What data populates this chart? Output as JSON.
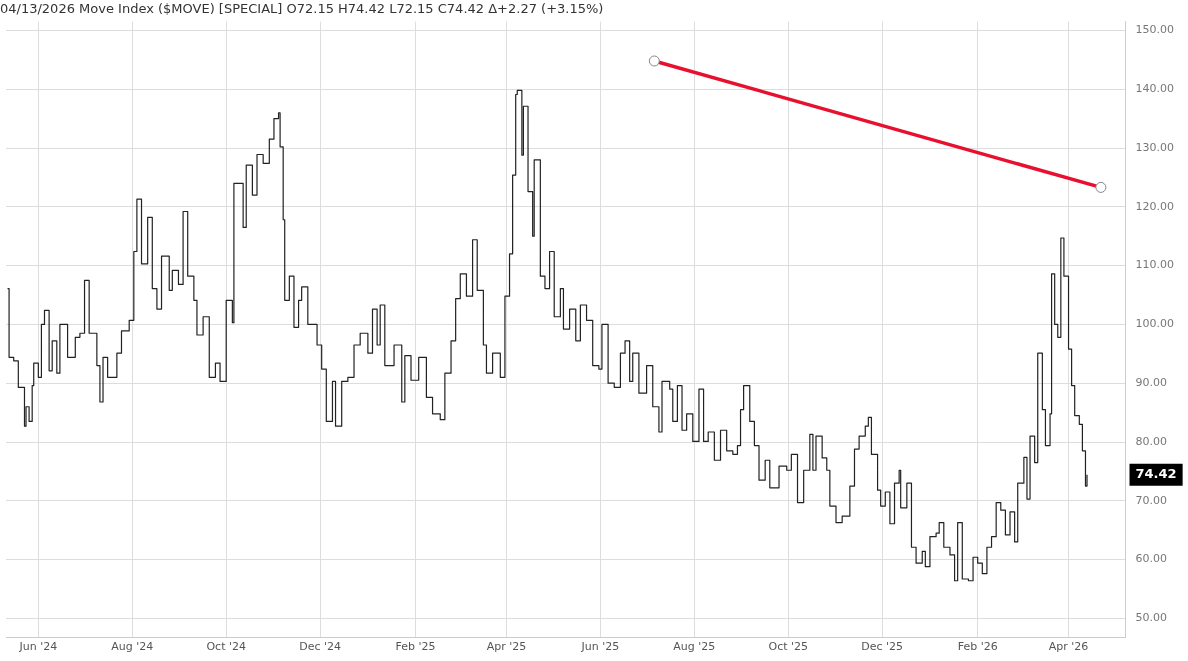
{
  "chart_data": {
    "type": "step",
    "title": "04/13/2026 Move Index ($MOVE) [SPECIAL] O72.15 H74.42 L72.15 C74.42 Δ+2.27 (+3.15%)",
    "xlim": [
      "2024-05-11",
      "2026-05-08"
    ],
    "xticks": [
      {
        "value": "2024-06-01",
        "label": "Jun '24"
      },
      {
        "value": "2024-08-01",
        "label": "Aug '24"
      },
      {
        "value": "2024-10-01",
        "label": "Oct '24"
      },
      {
        "value": "2024-12-01",
        "label": "Dec '24"
      },
      {
        "value": "2025-02-01",
        "label": "Feb '25"
      },
      {
        "value": "2025-04-01",
        "label": "Apr '25"
      },
      {
        "value": "2025-06-01",
        "label": "Jun '25"
      },
      {
        "value": "2025-08-01",
        "label": "Aug '25"
      },
      {
        "value": "2025-10-01",
        "label": "Oct '25"
      },
      {
        "value": "2025-12-01",
        "label": "Dec '25"
      },
      {
        "value": "2026-02-01",
        "label": "Feb '26"
      },
      {
        "value": "2026-04-01",
        "label": "Apr '26"
      }
    ],
    "ylim": [
      46.7,
      151.5
    ],
    "yticks": [
      {
        "value": 50,
        "label": "50.00"
      },
      {
        "value": 60,
        "label": "60.00"
      },
      {
        "value": 70,
        "label": "70.00"
      },
      {
        "value": 80,
        "label": "80.00"
      },
      {
        "value": 90,
        "label": "90.00"
      },
      {
        "value": 100,
        "label": "100.00"
      },
      {
        "value": 110,
        "label": "110.00"
      },
      {
        "value": 120,
        "label": "120.00"
      },
      {
        "value": 130,
        "label": "130.00"
      },
      {
        "value": 140,
        "label": "140.00"
      },
      {
        "value": 150,
        "label": "150.00"
      }
    ],
    "grid": true,
    "legend": false,
    "marker": "none",
    "series": [
      {
        "color": "#222222",
        "x": [
          "2024-05-12",
          "2024-05-13",
          "2024-05-16",
          "2024-05-19",
          "2024-05-23",
          "2024-05-24",
          "2024-05-26",
          "2024-05-28",
          "2024-05-29",
          "2024-06-01",
          "2024-06-03",
          "2024-06-05",
          "2024-06-08",
          "2024-06-10",
          "2024-06-13",
          "2024-06-15",
          "2024-06-20",
          "2024-06-25",
          "2024-06-28",
          "2024-07-01",
          "2024-07-04",
          "2024-07-09",
          "2024-07-11",
          "2024-07-13",
          "2024-07-16",
          "2024-07-22",
          "2024-07-25",
          "2024-07-30",
          "2024-08-02",
          "2024-08-04",
          "2024-08-07",
          "2024-08-11",
          "2024-08-14",
          "2024-08-17",
          "2024-08-20",
          "2024-08-25",
          "2024-08-27",
          "2024-08-31",
          "2024-09-03",
          "2024-09-06",
          "2024-09-10",
          "2024-09-12",
          "2024-09-16",
          "2024-09-20",
          "2024-09-24",
          "2024-09-27",
          "2024-10-01",
          "2024-10-05",
          "2024-10-06",
          "2024-10-12",
          "2024-10-14",
          "2024-10-18",
          "2024-10-21",
          "2024-10-25",
          "2024-10-29",
          "2024-11-01",
          "2024-11-04",
          "2024-11-05",
          "2024-11-07",
          "2024-11-08",
          "2024-11-11",
          "2024-11-14",
          "2024-11-17",
          "2024-11-19",
          "2024-11-23",
          "2024-11-29",
          "2024-12-02",
          "2024-12-05",
          "2024-12-09",
          "2024-12-11",
          "2024-12-15",
          "2024-12-19",
          "2024-12-23",
          "2024-12-27",
          "2025-01-01",
          "2025-01-04",
          "2025-01-07",
          "2025-01-09",
          "2025-01-12",
          "2025-01-18",
          "2025-01-23",
          "2025-01-25",
          "2025-01-29",
          "2025-02-03",
          "2025-02-08",
          "2025-02-12",
          "2025-02-17",
          "2025-02-20",
          "2025-02-24",
          "2025-02-27",
          "2025-03-02",
          "2025-03-06",
          "2025-03-10",
          "2025-03-13",
          "2025-03-17",
          "2025-03-19",
          "2025-03-23",
          "2025-03-28",
          "2025-03-31",
          "2025-04-03",
          "2025-04-05",
          "2025-04-07",
          "2025-04-08",
          "2025-04-11",
          "2025-04-12",
          "2025-04-15",
          "2025-04-18",
          "2025-04-19",
          "2025-04-23",
          "2025-04-26",
          "2025-04-29",
          "2025-05-02",
          "2025-05-06",
          "2025-05-08",
          "2025-05-12",
          "2025-05-16",
          "2025-05-19",
          "2025-05-23",
          "2025-05-27",
          "2025-05-31",
          "2025-06-02",
          "2025-06-06",
          "2025-06-10",
          "2025-06-14",
          "2025-06-17",
          "2025-06-20",
          "2025-06-22",
          "2025-06-26",
          "2025-07-01",
          "2025-07-05",
          "2025-07-09",
          "2025-07-11",
          "2025-07-16",
          "2025-07-18",
          "2025-07-21",
          "2025-07-24",
          "2025-07-27",
          "2025-07-31",
          "2025-08-04",
          "2025-08-07",
          "2025-08-10",
          "2025-08-14",
          "2025-08-18",
          "2025-08-22",
          "2025-08-26",
          "2025-08-29",
          "2025-08-31",
          "2025-09-02",
          "2025-09-06",
          "2025-09-09",
          "2025-09-12",
          "2025-09-16",
          "2025-09-19",
          "2025-09-25",
          "2025-09-30",
          "2025-10-03",
          "2025-10-07",
          "2025-10-11",
          "2025-10-15",
          "2025-10-17",
          "2025-10-19",
          "2025-10-23",
          "2025-10-26",
          "2025-10-28",
          "2025-11-01",
          "2025-11-05",
          "2025-11-10",
          "2025-11-13",
          "2025-11-16",
          "2025-11-20",
          "2025-11-22",
          "2025-11-24",
          "2025-11-28",
          "2025-11-30",
          "2025-12-03",
          "2025-12-06",
          "2025-12-09",
          "2025-12-12",
          "2025-12-13",
          "2025-12-17",
          "2025-12-20",
          "2025-12-23",
          "2025-12-27",
          "2025-12-29",
          "2026-01-01",
          "2026-01-05",
          "2026-01-07",
          "2026-01-10",
          "2026-01-14",
          "2026-01-17",
          "2026-01-19",
          "2026-01-22",
          "2026-01-26",
          "2026-01-29",
          "2026-02-01",
          "2026-02-04",
          "2026-02-07",
          "2026-02-10",
          "2026-02-13",
          "2026-02-16",
          "2026-02-19",
          "2026-02-22",
          "2026-02-25",
          "2026-02-27",
          "2026-03-03",
          "2026-03-05",
          "2026-03-07",
          "2026-03-10",
          "2026-03-12",
          "2026-03-15",
          "2026-03-17",
          "2026-03-20",
          "2026-03-21",
          "2026-03-23",
          "2026-03-25",
          "2026-03-27",
          "2026-03-29",
          "2026-04-01",
          "2026-04-03",
          "2026-04-05",
          "2026-04-08",
          "2026-04-10",
          "2026-04-12",
          "2026-04-13"
        ],
        "values": [
          106.1,
          94.4,
          93.8,
          89.3,
          82.7,
          86,
          83.5,
          89.6,
          93.4,
          91,
          100,
          102.4,
          92.1,
          97.2,
          91.7,
          100,
          94.4,
          97.8,
          98.5,
          107.5,
          98.5,
          93,
          86.8,
          94.4,
          91,
          95.1,
          98.9,
          100.7,
          112.4,
          121.3,
          110.3,
          118.2,
          106.1,
          102.6,
          111.6,
          105.8,
          109.2,
          106.8,
          119.2,
          108.2,
          104.1,
          98.2,
          101.3,
          91,
          93.4,
          90.3,
          104.1,
          100.3,
          124,
          116.5,
          127.1,
          122,
          128.9,
          127.4,
          131.5,
          135,
          136,
          130.2,
          117.8,
          104.1,
          108.2,
          99.5,
          104.1,
          106.4,
          100,
          96.5,
          92.4,
          83.5,
          90.3,
          82.7,
          90.3,
          91,
          96.5,
          98.5,
          95.1,
          102.6,
          96.5,
          103.3,
          93,
          96.5,
          86.8,
          94.7,
          90.5,
          94.4,
          87.6,
          84.8,
          83.8,
          91.7,
          97.2,
          104.4,
          108.6,
          104.8,
          114.4,
          105.8,
          96.5,
          91.7,
          95.1,
          91,
          104.8,
          112,
          125.4,
          139.1,
          139.8,
          128.8,
          137.1,
          122.6,
          115,
          128,
          108.2,
          106.1,
          112.4,
          101.3,
          106.1,
          99.2,
          102.6,
          97.2,
          103.3,
          100.7,
          93,
          92.4,
          100,
          90,
          89.3,
          95.1,
          97.2,
          90.3,
          95.1,
          88.3,
          93,
          86,
          81.7,
          90.3,
          89,
          83.5,
          89.6,
          82,
          84.8,
          80.1,
          89,
          80.1,
          81.7,
          76.9,
          82,
          78.5,
          77.9,
          79.4,
          85.5,
          89.6,
          83.5,
          79.4,
          73.5,
          76.9,
          72.2,
          75.9,
          75.2,
          77.9,
          69.7,
          75.2,
          81.3,
          75.2,
          81,
          77.3,
          75.2,
          69.1,
          66.3,
          67.4,
          72.5,
          78.8,
          81,
          82.7,
          84.2,
          77.9,
          71.8,
          69.1,
          71.5,
          66.1,
          73,
          75.2,
          68.8,
          73,
          62.1,
          59.4,
          61.4,
          58.8,
          63.9,
          64.5,
          66.3,
          62.1,
          60.8,
          56.4,
          66.3,
          56.7,
          56.4,
          60.4,
          59.4,
          57.6,
          62.1,
          63.9,
          69.7,
          68.4,
          64.2,
          68.1,
          63,
          73,
          77.4,
          70.3,
          81,
          76.5,
          95.1,
          85.5,
          79.4,
          84.8,
          108.6,
          100,
          97.8,
          114.7,
          108.2,
          95.8,
          89.6,
          84.5,
          83,
          78.5,
          72.5,
          74.42
        ]
      },
      {
        "type": "line",
        "color": "#e8102e",
        "marker": "circle",
        "x": [
          "2025-07-06",
          "2026-04-22"
        ],
        "values": [
          144.8,
          123.3
        ]
      }
    ],
    "annotations": [
      "74.42"
    ]
  }
}
